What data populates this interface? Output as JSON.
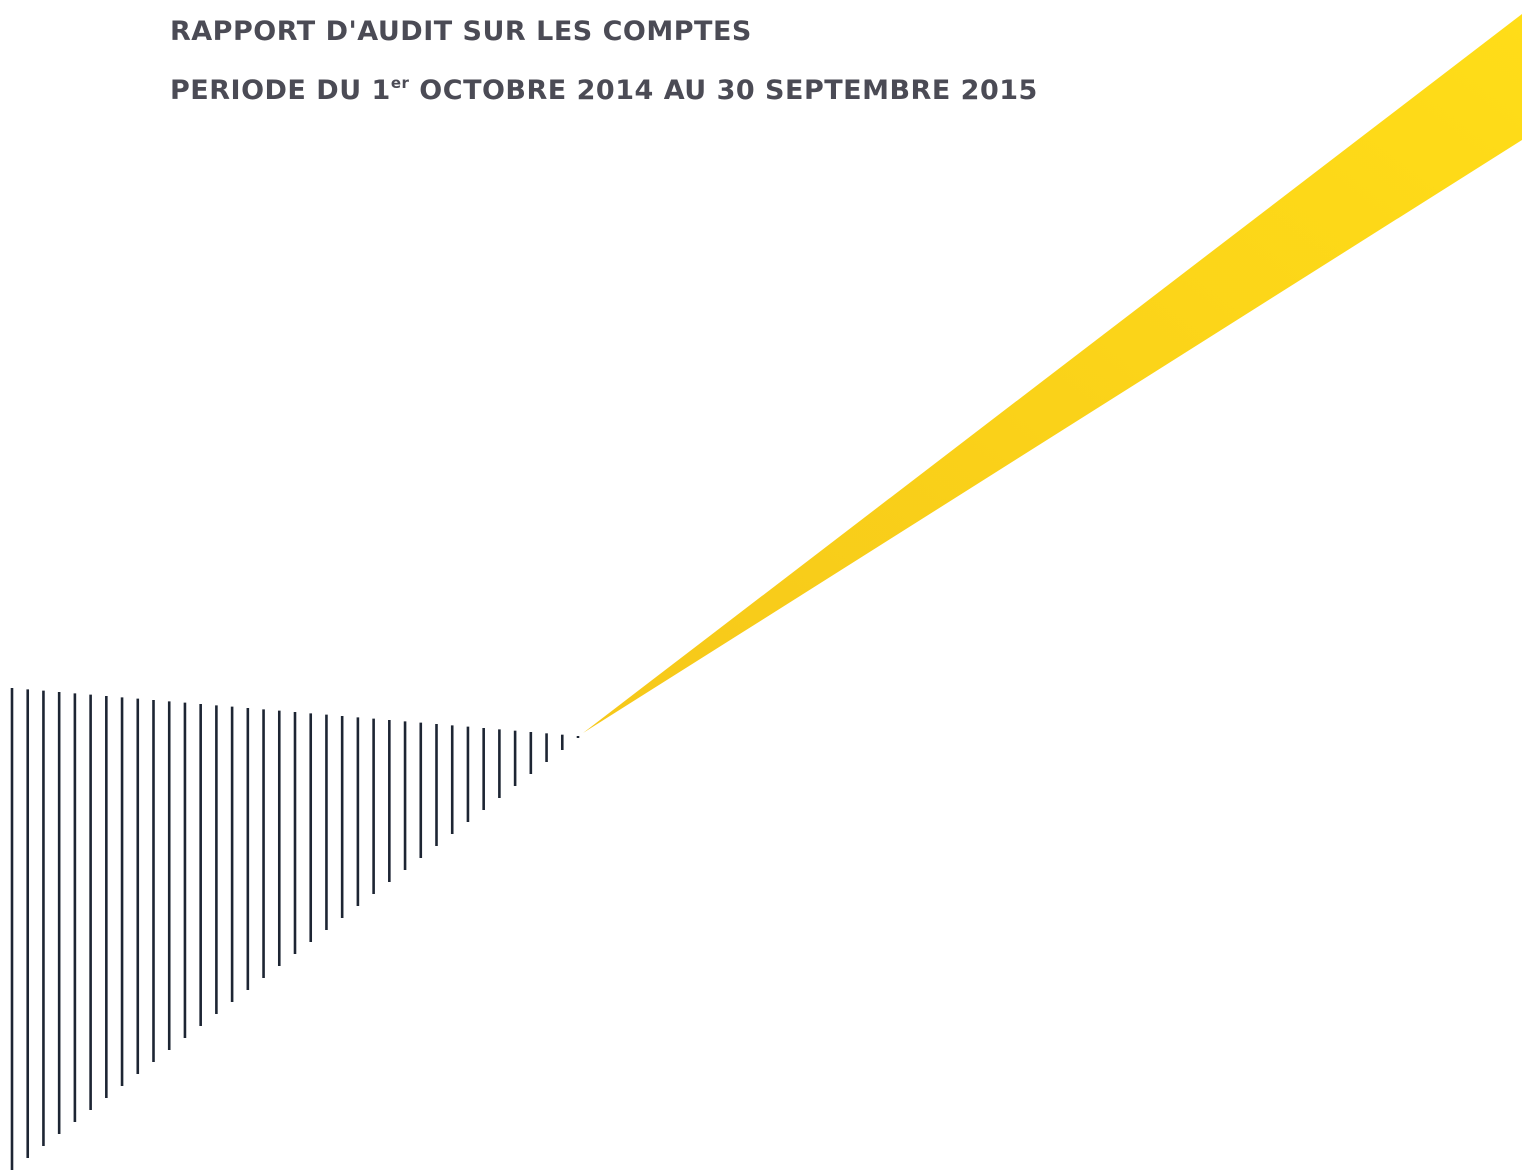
{
  "header": {
    "title": "RAPPORT D'AUDIT SUR LES COMPTES",
    "subtitle": {
      "before": "PERIODE DU 1",
      "superscript": "er",
      "after": "OCTOBRE 2014 AU 30 SEPTEMBRE 2015"
    }
  }
}
